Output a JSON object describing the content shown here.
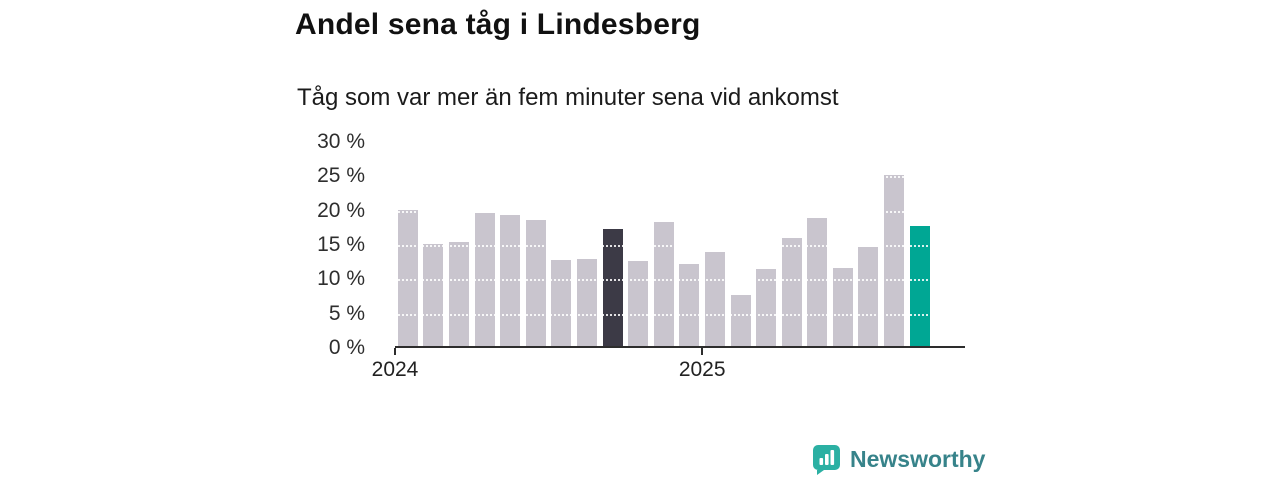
{
  "header": {
    "title": "Andel sena tåg i Lindesberg",
    "subtitle": "Tåg som var mer än fem minuter sena vid ankomst"
  },
  "chart_data": {
    "type": "bar",
    "title": "Andel sena tåg i Lindesberg",
    "subtitle": "Tåg som var mer än fem minuter sena vid ankomst",
    "unit": "%",
    "values": [
      20.1,
      15.2,
      15.4,
      19.6,
      19.4,
      18.6,
      12.8,
      12.9,
      17.4,
      12.7,
      18.3,
      12.2,
      14.0,
      7.7,
      11.5,
      16.0,
      18.9,
      11.7,
      14.7,
      25.2,
      17.7
    ],
    "highlight_dark_index": 8,
    "highlight_accent_index": 20,
    "ylim": [
      0,
      30
    ],
    "y_tick_labels": [
      "30 %",
      "25 %",
      "20 %",
      "15 %",
      "10 %",
      "5 %",
      "0 %"
    ],
    "x_ticks": [
      {
        "label": "2024",
        "slot": 0
      },
      {
        "label": "2025",
        "slot": 12
      }
    ],
    "colors": {
      "bar": "#c9c5ce",
      "dark": "#3c3a46",
      "accent": "#00a794"
    },
    "grid": "dotted-white-over-bars",
    "legend": "none"
  },
  "footer": {
    "brand": "Newsworthy",
    "brand_color": "#37838a",
    "icon_color": "#2bb0a3"
  }
}
